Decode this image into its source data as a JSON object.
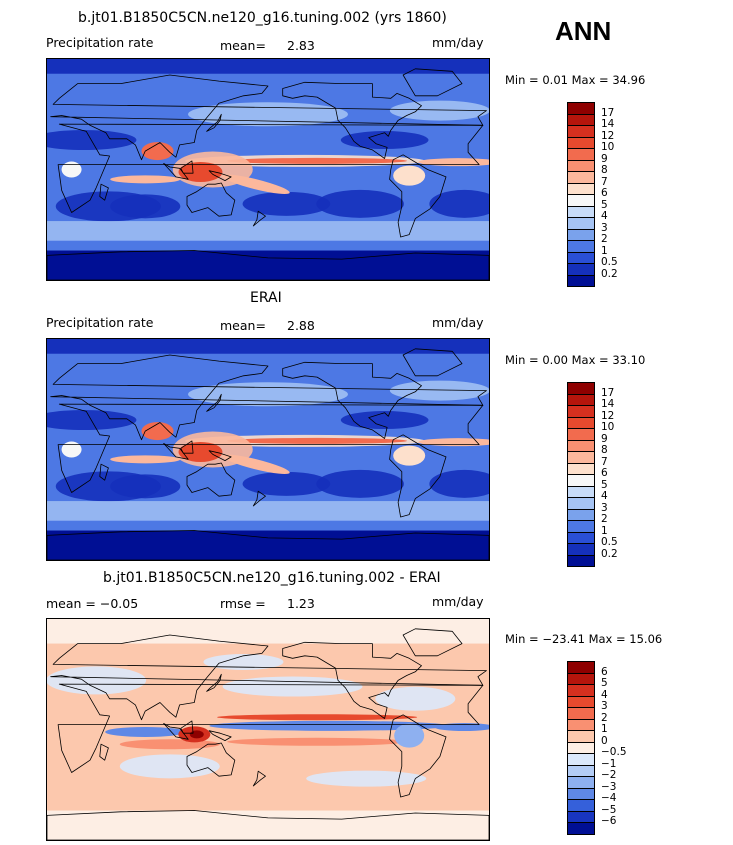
{
  "season": "ANN",
  "panels": [
    {
      "title": "b.jt01.B1850C5CN.ne120_g16.tuning.002 (yrs 1860)",
      "left_label": "Precipitation rate",
      "center_label": "mean=",
      "center_value": "2.83",
      "units": "mm/day",
      "minmax": "Min =   0.01 Max =  34.96",
      "kind": "abs",
      "levels": [
        "17",
        "14",
        "12",
        "10",
        "9",
        "8",
        "7",
        "6",
        "5",
        "4",
        "3",
        "2",
        "1",
        "0.5",
        "0.2"
      ],
      "colors": [
        "#8e0000",
        "#b5150c",
        "#d5301f",
        "#e74a2e",
        "#f26b4e",
        "#f99072",
        "#fcb89c",
        "#fde0cc",
        "#f7f7f7",
        "#c8dcf8",
        "#a6c4f4",
        "#7aa2ec",
        "#4d78e4",
        "#2a4fd6",
        "#1530bb",
        "#000f94"
      ]
    },
    {
      "title": "ERAI",
      "left_label": "Precipitation rate",
      "center_label": "mean=",
      "center_value": "2.88",
      "units": "mm/day",
      "minmax": "Min =   0.00 Max =  33.10",
      "kind": "abs",
      "levels": [
        "17",
        "14",
        "12",
        "10",
        "9",
        "8",
        "7",
        "6",
        "5",
        "4",
        "3",
        "2",
        "1",
        "0.5",
        "0.2"
      ],
      "colors": [
        "#8e0000",
        "#b5150c",
        "#d5301f",
        "#e74a2e",
        "#f26b4e",
        "#f99072",
        "#fcb89c",
        "#fde0cc",
        "#f7f7f7",
        "#c8dcf8",
        "#a6c4f4",
        "#7aa2ec",
        "#4d78e4",
        "#2a4fd6",
        "#1530bb",
        "#000f94"
      ]
    },
    {
      "title": "b.jt01.B1850C5CN.ne120_g16.tuning.002 - ERAI",
      "left_label": "mean =  −0.05",
      "center_label": "rmse =",
      "center_value": "1.23",
      "units": "mm/day",
      "minmax": "Min = −23.41 Max =  15.06",
      "kind": "diff",
      "levels": [
        "6",
        "5",
        "4",
        "3",
        "2",
        "1",
        "0",
        "−0.5",
        "−1",
        "−2",
        "−3",
        "−4",
        "−5",
        "−6"
      ],
      "colors": [
        "#8e0000",
        "#b5150c",
        "#d5301f",
        "#e74a2e",
        "#f26b4e",
        "#f99072",
        "#fcc8ad",
        "#fdeee4",
        "#dbe8fb",
        "#b4cdf6",
        "#8eb0f0",
        "#5f88e6",
        "#3560da",
        "#1835c0",
        "#000f94"
      ]
    }
  ]
}
